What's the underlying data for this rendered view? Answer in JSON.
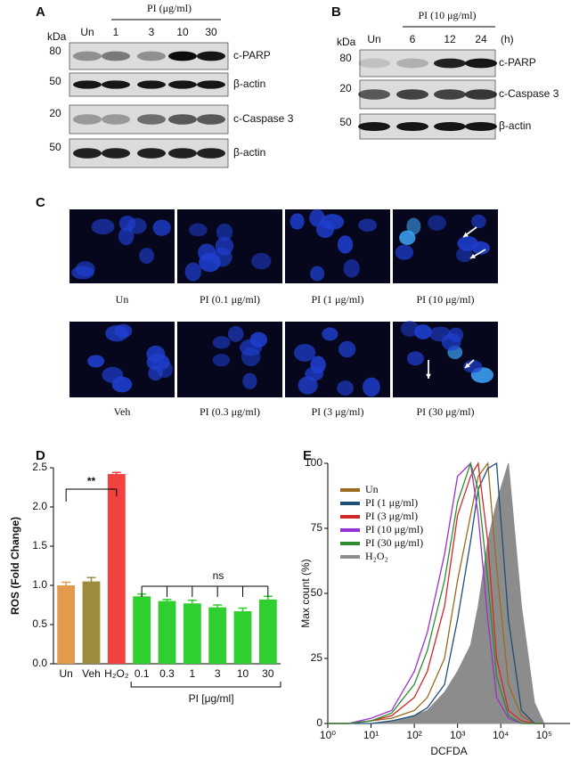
{
  "panels": {
    "A": {
      "label": "A",
      "title": "PI (μg/ml)",
      "kda": "kDa",
      "lanes": [
        "Un",
        "1",
        "3",
        "10",
        "30"
      ],
      "markers": [
        80,
        50,
        20,
        50
      ],
      "proteins": [
        "c-PARP",
        "β-actin",
        "c-Caspase 3",
        "β-actin"
      ]
    },
    "B": {
      "label": "B",
      "title": "PI (10 μg/ml)",
      "kda": "kDa",
      "lanes": [
        "Un",
        "6",
        "12",
        "24"
      ],
      "unit": "(h)",
      "markers": [
        80,
        20,
        50
      ],
      "proteins": [
        "c-PARP",
        "c-Caspase 3",
        "β-actin"
      ]
    },
    "C": {
      "label": "C",
      "images": [
        "Un",
        "PI (0.1 μg/ml)",
        "PI (1 μg/ml)",
        "PI (10 μg/ml)",
        "Veh",
        "PI (0.3 μg/ml)",
        "PI (3 μg/ml)",
        "PI (30 μg/ml)"
      ]
    },
    "D": {
      "label": "D"
    },
    "E": {
      "label": "E"
    }
  },
  "chart_data": [
    {
      "type": "bar",
      "y_label": "ROS (Fold Change)",
      "x_group_label": "PI [μg/ml]",
      "categories": [
        "Un",
        "Veh",
        "H₂O₂",
        "0.1",
        "0.3",
        "1",
        "3",
        "10",
        "30"
      ],
      "values": [
        1.0,
        1.05,
        2.42,
        0.86,
        0.8,
        0.77,
        0.72,
        0.67,
        0.82
      ],
      "errors": [
        0.04,
        0.05,
        0.02,
        0.03,
        0.02,
        0.04,
        0.03,
        0.04,
        0.04
      ],
      "colors": [
        "#e29a4c",
        "#9c8b3b",
        "#f2413f",
        "#2fcf2f",
        "#2fcf2f",
        "#2fcf2f",
        "#2fcf2f",
        "#2fcf2f",
        "#2fcf2f"
      ],
      "annotations": [
        "**",
        "ns"
      ],
      "ylim": [
        0,
        2.5
      ],
      "yticks": [
        {
          "value": 0,
          "label": "0.0"
        },
        0.5,
        {
          "value": 1,
          "label": "1.0"
        },
        1.5,
        {
          "value": 2,
          "label": "2.0"
        },
        2.5
      ]
    },
    {
      "type": "line",
      "x_label": "DCFDA",
      "y_label": "Max count (%)",
      "xscale": "log",
      "legend": "upper-left",
      "x": [
        1,
        3,
        10,
        30,
        100,
        200,
        500,
        1000,
        2000,
        3000,
        5000,
        8000,
        15000,
        30000,
        60000,
        100000
      ],
      "series": [
        {
          "name": "H₂O₂",
          "color": "#8c8c8c",
          "style": "area",
          "values": [
            0,
            0,
            0,
            1,
            3,
            5,
            12,
            20,
            30,
            45,
            70,
            85,
            100,
            45,
            8,
            0
          ]
        },
        {
          "name": "Un",
          "color": "#9b6a1e",
          "values": [
            0,
            0,
            1,
            2,
            5,
            10,
            25,
            55,
            80,
            95,
            100,
            60,
            15,
            3,
            0,
            0
          ]
        },
        {
          "name": "PI (1 μg/ml)",
          "color": "#1f4e79",
          "values": [
            0,
            0,
            0,
            1,
            3,
            6,
            15,
            40,
            70,
            90,
            98,
            100,
            40,
            5,
            0,
            0
          ]
        },
        {
          "name": "PI (3 μg/ml)",
          "color": "#d62728",
          "values": [
            0,
            0,
            1,
            3,
            10,
            20,
            45,
            80,
            95,
            100,
            70,
            25,
            5,
            1,
            0,
            0
          ]
        },
        {
          "name": "PI (10 μg/ml)",
          "color": "#9b30d0",
          "values": [
            0,
            0,
            2,
            5,
            20,
            35,
            65,
            95,
            100,
            80,
            40,
            10,
            2,
            0,
            0,
            0
          ]
        },
        {
          "name": "PI (30 μg/ml)",
          "color": "#2e8b2e",
          "values": [
            0,
            0,
            1,
            4,
            15,
            28,
            55,
            85,
            100,
            90,
            55,
            18,
            3,
            0,
            0,
            0
          ]
        }
      ],
      "xlim": [
        1,
        400000
      ],
      "xticks": [
        {
          "value": 1,
          "label": "10⁰"
        },
        {
          "value": 10,
          "label": "10¹"
        },
        {
          "value": 100,
          "label": "10²"
        },
        {
          "value": 1000,
          "label": "10³"
        },
        {
          "value": 10000,
          "label": "10⁴"
        },
        {
          "value": 100000,
          "label": "10⁵"
        }
      ],
      "ylim": [
        0,
        100
      ],
      "yticks": [
        0,
        25,
        50,
        75,
        100
      ]
    }
  ]
}
